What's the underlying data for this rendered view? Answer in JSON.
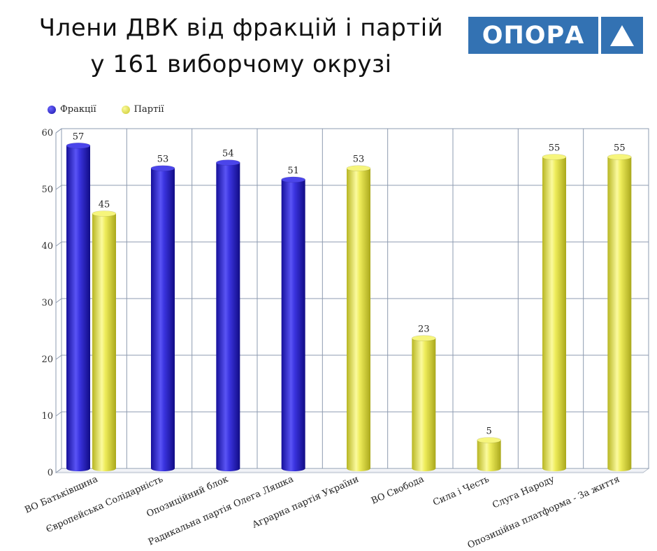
{
  "title": {
    "line1": "Члени ДВК  від фракцій і партій",
    "line2": "у 161 виборчому окрузі"
  },
  "logo": {
    "text": "ОПОРА",
    "color": "#3372b3"
  },
  "colors": {
    "fractions": "#2a22c8",
    "parties": "#e3e145",
    "grid": "#8e9bb0"
  },
  "legend": [
    {
      "label": "Фракції",
      "color": "#2a22c8"
    },
    {
      "label": "Партії",
      "color": "#e3e145"
    }
  ],
  "chart_data": {
    "type": "bar",
    "categories": [
      "ВО Батьківщина",
      "Європейська Солідарність",
      "Опозиційний блок",
      "Радикальна партія Олега Ляшка",
      "Аграрна партія України",
      "ВО Свобода",
      "Сила і Честь",
      "Слуга Народу",
      "Опозиційна платформа - За життя"
    ],
    "series": [
      {
        "name": "Фракції",
        "values": [
          57,
          53,
          54,
          51,
          null,
          null,
          null,
          null,
          null
        ]
      },
      {
        "name": "Партії",
        "values": [
          45,
          null,
          null,
          null,
          53,
          23,
          5,
          55,
          55
        ]
      }
    ],
    "ylim": [
      0,
      60
    ],
    "yticks": [
      0,
      10,
      20,
      30,
      40,
      50,
      60
    ],
    "grid": true,
    "legend_position": "top-left"
  }
}
